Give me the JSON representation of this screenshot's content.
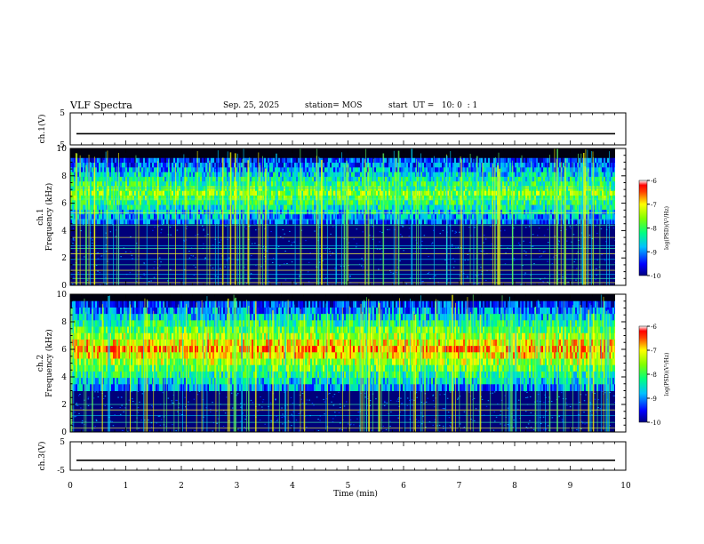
{
  "header": {
    "title": "VLF Spectra",
    "date": "Sep. 25, 2025",
    "station": "station= MOS",
    "start": "start  UT =   10: 0  : 1"
  },
  "chart_data": [
    {
      "type": "line",
      "panel": "ch1-waveform",
      "ylabel": "ch.1(V)",
      "ylim": [
        -5,
        5
      ],
      "yticks": [
        "5",
        "-5"
      ],
      "xlim": [
        0,
        10
      ],
      "series": [
        {
          "values_constant": -1.5
        }
      ]
    },
    {
      "type": "heatmap",
      "panel": "ch1-spectrogram",
      "ylabel": "ch.1\nFrequency (kHz)",
      "ylabel_line1": "ch.1",
      "ylabel_line2": "Frequency (kHz)",
      "ylim": [
        0,
        10
      ],
      "yticks": [
        "0",
        "2",
        "4",
        "6",
        "8",
        "10"
      ],
      "xlim": [
        0,
        9.8
      ],
      "colorbar": {
        "range": [
          -10,
          -6
        ],
        "ticks": [
          "-6",
          "-7",
          "-8",
          "-9",
          "-10"
        ],
        "label": "log(PSD)(V²/Hz)"
      },
      "lines_khz": [
        0.2,
        0.5,
        0.8,
        1.1,
        1.5,
        1.9,
        2.3,
        2.7,
        2.9,
        3.5,
        4.4,
        4.8,
        5.3,
        6.3,
        7.1
      ],
      "band_khz": [
        4.5,
        9.3
      ]
    },
    {
      "type": "heatmap",
      "panel": "ch2-spectrogram",
      "ylabel": "ch.2\nFrequency (kHz)",
      "ylabel_line1": "ch.2",
      "ylabel_line2": "Frequency (kHz)",
      "ylim": [
        0,
        10
      ],
      "yticks": [
        "0",
        "2",
        "4",
        "6",
        "8",
        "10"
      ],
      "xlim": [
        0,
        9.8
      ],
      "colorbar": {
        "range": [
          -10,
          -6
        ],
        "ticks": [
          "-6",
          "-7",
          "-8",
          "-9",
          "-10"
        ],
        "label": "log(PSD)(V²/Hz)"
      },
      "lines_khz": [
        0.3,
        0.7,
        1.2,
        1.6,
        2.0
      ],
      "band_khz": [
        3.0,
        9.5
      ]
    },
    {
      "type": "line",
      "panel": "ch3-waveform",
      "ylabel": "ch.3(V)",
      "ylim": [
        -5,
        5
      ],
      "yticks": [
        "5",
        "-5"
      ],
      "xlim": [
        0,
        10
      ],
      "series": [
        {
          "values_constant": -1.5
        }
      ]
    }
  ],
  "xaxis": {
    "label": "Time (min)",
    "ticks": [
      "0",
      "1",
      "2",
      "3",
      "4",
      "5",
      "6",
      "7",
      "8",
      "9",
      "10"
    ]
  }
}
